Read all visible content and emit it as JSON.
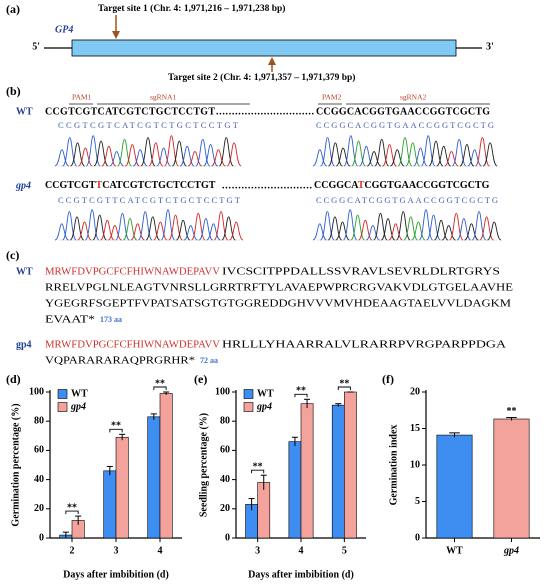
{
  "panel_a": {
    "label": "(a)",
    "gene": "GP4",
    "five_prime": "5'",
    "three_prime": "3'",
    "target_site_1": "Target site 1 (Chr. 4: 1,971,216 – 1,971,238 bp)",
    "target_site_2": "Target site 2 (Chr. 4: 1,971,357 – 1,971,379 bp)"
  },
  "panel_b": {
    "label": "(b)",
    "wt": {
      "name": "WT",
      "pam1": "PAM1",
      "sgrna1": "sgRNA1",
      "pam2": "PAM2",
      "sgrna2": "sgRNA2",
      "seq1": "CCGTCGTCATCGTCTGCTCCTGT",
      "dots": "...............................",
      "seq2": "CCGGCACGGTGAACCGGTCGCTG",
      "trace1": "CCGTCGTCATCGTCTGCTCCTGT",
      "trace2": "CCGGCACGGTGAACCGGTCGCTG"
    },
    "mutant": {
      "name": "gp4",
      "seq1": [
        "CCGTCGT",
        "T",
        "CATCGTCTGCTCCTGT"
      ],
      "dots": "............................",
      "seq2": [
        "CCGGCA",
        "T",
        "CGGTGAACCGGTCGCTG"
      ],
      "trace1": "CCGTCGTTCATCGTCTGCTCCTGT",
      "trace2": "CCGGCATCGGTGAACCGGTCGCTG"
    }
  },
  "panel_c": {
    "label": "(c)",
    "wt": {
      "name": "WT",
      "conserved": "MRWFDVPGCFCFHIWNAWDEPAVV",
      "lines": [
        "IVCSCITPPDALLSSVRAVLSEVRLDLRTGRYS",
        "RRELVPGLNLEAGTVNRSLLGRRTRFTYLAVAEPWPRCRGVAKVDLGTGELAAVHE",
        "YGEGRFSGEPTFVPATSATSGTGTGGREDDGHVVVMVHDEAAGTAELVVLDAGKM",
        "EVAAT*"
      ],
      "length": "173 aa"
    },
    "mutant": {
      "name": "gp4",
      "conserved": "MRWFDVPGCFCFHIWNAWDEPAVV",
      "lines": [
        "HRLLLYHAARRALVLRARRPVRGPARPPDGA",
        "VQPARARARAQPRGRHR*"
      ],
      "length": "72 aa"
    }
  },
  "chart_data": [
    {
      "type": "bar",
      "label": "(d)",
      "y_label": "Germination percentage (%)",
      "x_label": "Days after imbibition (d)",
      "categories": [
        "2",
        "3",
        "4"
      ],
      "ylim": [
        0,
        100
      ],
      "yticks": [
        0,
        20,
        40,
        60,
        80,
        100
      ],
      "legend": "upper left",
      "series": [
        {
          "name": "WT",
          "color": "#3d8ef0",
          "font_style": "normal",
          "values": [
            2,
            46,
            83
          ],
          "errors": [
            2,
            3,
            2
          ]
        },
        {
          "name": "gp4",
          "color": "#f4a39c",
          "font_style": "italic",
          "values": [
            12,
            69,
            99
          ],
          "errors": [
            3,
            2,
            1
          ]
        }
      ],
      "significance": [
        "**",
        "**",
        "**"
      ]
    },
    {
      "type": "bar",
      "label": "(e)",
      "y_label": "Seedling percentage (%)",
      "x_label": "Days after imbibition (d)",
      "categories": [
        "3",
        "4",
        "5"
      ],
      "ylim": [
        0,
        100
      ],
      "yticks": [
        0,
        20,
        40,
        60,
        80,
        100
      ],
      "legend": "upper left",
      "series": [
        {
          "name": "WT",
          "color": "#3d8ef0",
          "font_style": "normal",
          "values": [
            23,
            66,
            91
          ],
          "errors": [
            4,
            3,
            1
          ]
        },
        {
          "name": "gp4",
          "color": "#f4a39c",
          "font_style": "italic",
          "values": [
            38,
            92,
            100
          ],
          "errors": [
            5,
            3,
            0
          ]
        }
      ],
      "significance": [
        "**",
        "**",
        "**"
      ]
    },
    {
      "type": "bar",
      "label": "(f)",
      "y_label": "Germination index",
      "categories": [
        "WT",
        "gp4"
      ],
      "category_font_styles": [
        "normal",
        "italic"
      ],
      "ylim": [
        0,
        20
      ],
      "yticks": [
        0,
        5,
        10,
        15,
        20
      ],
      "values": [
        14.1,
        16.3
      ],
      "errors": [
        0.3,
        0.2
      ],
      "colors": [
        "#3d8ef0",
        "#f4a39c"
      ],
      "significance": [
        null,
        "**"
      ]
    }
  ]
}
